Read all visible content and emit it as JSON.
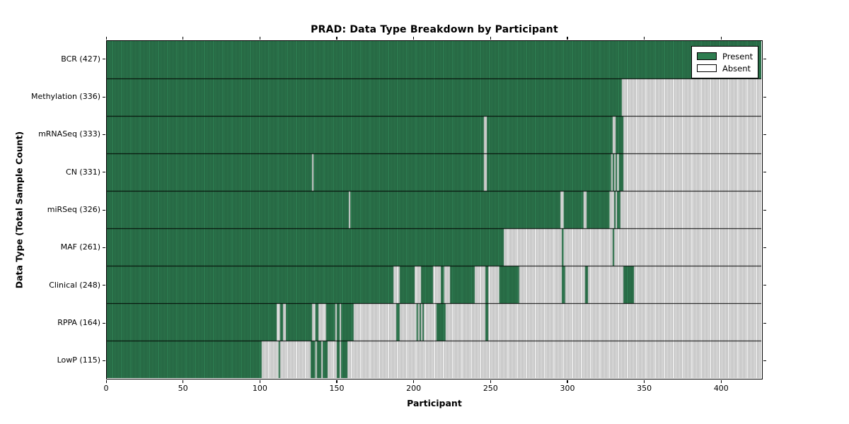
{
  "title": "PRAD: Data Type Breakdown by Participant",
  "axes": {
    "x_label": "Participant",
    "y_label": "Data Type (Total Sample Count)",
    "x_tick_values": [
      0,
      50,
      100,
      150,
      200,
      250,
      300,
      350,
      400
    ]
  },
  "legend": {
    "present_label": "Present",
    "absent_label": "Absent"
  },
  "colors": {
    "present_fill": "#2e7d50",
    "present_stripe": "#225c3c",
    "absent_fill": "#f2f2f2",
    "absent_stripe": "#acacac",
    "row_divider": "#000000",
    "axis": "#000000"
  },
  "chart_data": {
    "type": "heatmap",
    "title": "PRAD: Data Type Breakdown by Participant",
    "xlabel": "Participant",
    "ylabel": "Data Type (Total Sample Count)",
    "x_range": [
      0,
      427
    ],
    "x_ticks": [
      0,
      50,
      100,
      150,
      200,
      250,
      300,
      350,
      400
    ],
    "legend_entries": [
      "Present",
      "Absent"
    ],
    "legend_position": "upper right",
    "grid": false,
    "rows": [
      {
        "name": "bcr",
        "label": "BCR (427)",
        "total": 427,
        "present_segments": [
          [
            0,
            426
          ]
        ]
      },
      {
        "name": "methylation",
        "label": "Methylation (336)",
        "total": 336,
        "present_segments": [
          [
            0,
            335
          ]
        ]
      },
      {
        "name": "mrnaseq",
        "label": "mRNASeq (333)",
        "total": 333,
        "present_segments": [
          [
            0,
            245
          ],
          [
            248,
            329
          ],
          [
            332,
            336
          ]
        ]
      },
      {
        "name": "cn",
        "label": "CN (331)",
        "total": 331,
        "present_segments": [
          [
            0,
            133
          ],
          [
            135,
            245
          ],
          [
            248,
            328
          ],
          [
            330,
            330
          ],
          [
            332,
            332
          ],
          [
            334,
            336
          ]
        ]
      },
      {
        "name": "mirseq",
        "label": "miRSeq (326)",
        "total": 326,
        "present_segments": [
          [
            0,
            157
          ],
          [
            159,
            295
          ],
          [
            298,
            310
          ],
          [
            313,
            327
          ],
          [
            331,
            331
          ],
          [
            333,
            334
          ]
        ]
      },
      {
        "name": "maf",
        "label": "MAF (261)",
        "total": 261,
        "present_segments": [
          [
            0,
            258
          ],
          [
            297,
            297
          ],
          [
            330,
            330
          ]
        ]
      },
      {
        "name": "clinical",
        "label": "Clinical (248)",
        "total": 248,
        "present_segments": [
          [
            0,
            186
          ],
          [
            191,
            200
          ],
          [
            205,
            212
          ],
          [
            218,
            219
          ],
          [
            224,
            239
          ],
          [
            247,
            248
          ],
          [
            256,
            268
          ],
          [
            297,
            298
          ],
          [
            312,
            313
          ],
          [
            337,
            343
          ]
        ]
      },
      {
        "name": "rppa",
        "label": "RPPA (164)",
        "total": 164,
        "present_segments": [
          [
            0,
            110
          ],
          [
            113,
            114
          ],
          [
            117,
            133
          ],
          [
            136,
            137
          ],
          [
            143,
            148
          ],
          [
            150,
            151
          ],
          [
            153,
            160
          ],
          [
            189,
            190
          ],
          [
            202,
            202
          ],
          [
            204,
            204
          ],
          [
            206,
            206
          ],
          [
            215,
            220
          ],
          [
            247,
            248
          ]
        ]
      },
      {
        "name": "lowp",
        "label": "LowP (115)",
        "total": 115,
        "present_segments": [
          [
            0,
            100
          ],
          [
            112,
            112
          ],
          [
            133,
            135
          ],
          [
            137,
            139
          ],
          [
            141,
            143
          ],
          [
            150,
            151
          ],
          [
            153,
            156
          ]
        ]
      }
    ]
  }
}
